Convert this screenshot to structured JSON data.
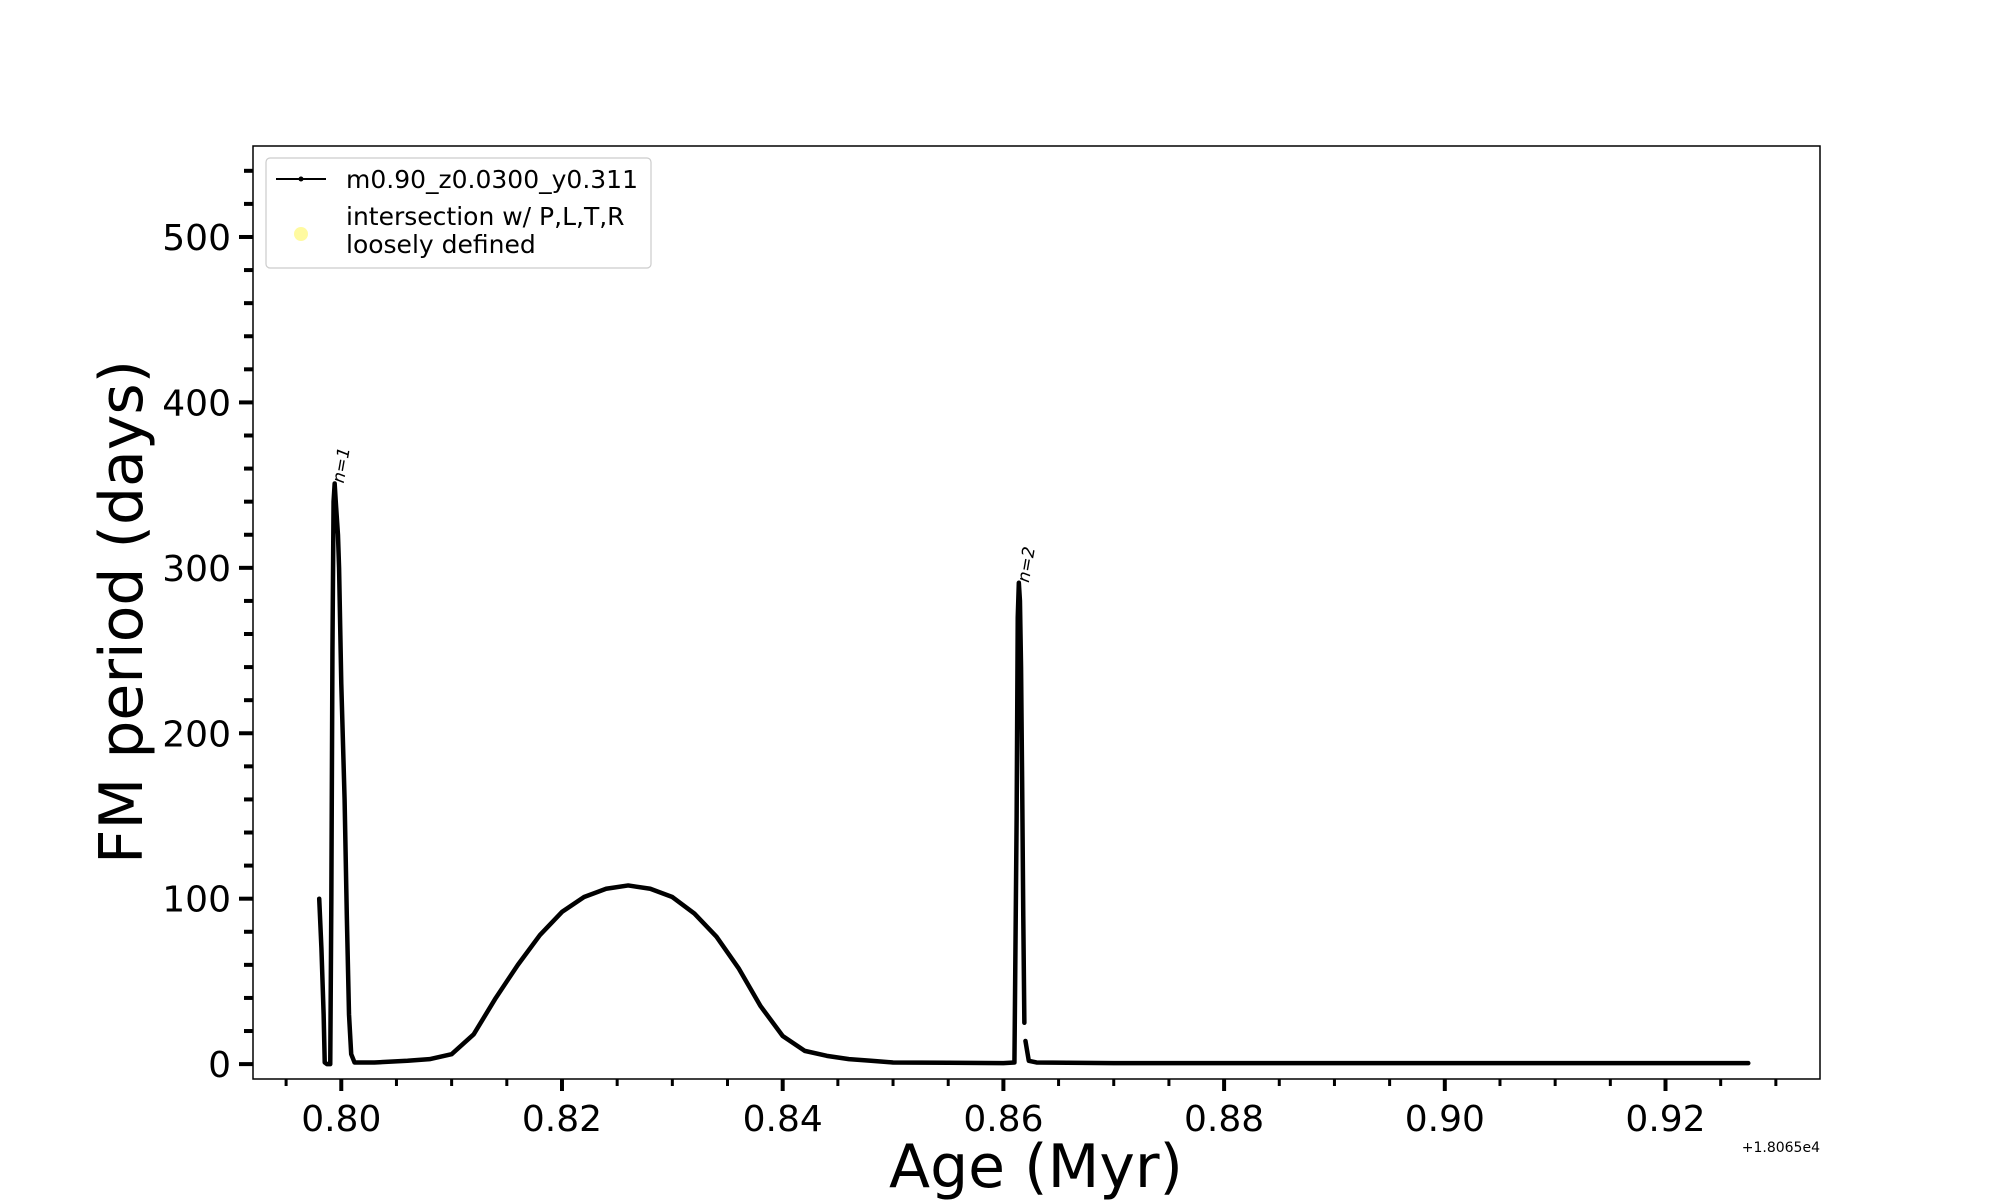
{
  "chart_data": {
    "type": "line",
    "xlabel": "Age (Myr)",
    "ylabel": "FM period (days)",
    "x_offset_label": "+1.8065e4",
    "xlim": [
      0.792,
      0.934
    ],
    "ylim": [
      -9,
      555
    ],
    "x_ticks": [
      0.8,
      0.82,
      0.84,
      0.86,
      0.88,
      0.9,
      0.92
    ],
    "x_tick_labels": [
      "0.80",
      "0.82",
      "0.84",
      "0.86",
      "0.88",
      "0.90",
      "0.92"
    ],
    "x_minor_step": 0.005,
    "y_ticks": [
      0,
      100,
      200,
      300,
      400,
      500
    ],
    "y_tick_labels": [
      "0",
      "100",
      "200",
      "300",
      "400",
      "500"
    ],
    "y_minor_step": 20,
    "grid": false,
    "legend_position": "upper-left",
    "legend": [
      {
        "label": "m0.90_z0.0300_y0.311",
        "marker": "line-with-dots",
        "color": "#000000"
      },
      {
        "label_lines": [
          "intersection w/ P,L,T,R",
          "loosely defined"
        ],
        "marker": "circle",
        "color": "#fffaa0"
      }
    ],
    "annotations": [
      {
        "text": "n=1",
        "x": 0.7993,
        "y": 352
      },
      {
        "text": "n=2",
        "x": 0.8614,
        "y": 292
      }
    ],
    "series": [
      {
        "name": "m0.90_z0.0300_y0.311",
        "color": "#000000",
        "segments": [
          [
            [
              0.798,
              100
            ],
            [
              0.7982,
              70
            ],
            [
              0.7984,
              30
            ],
            [
              0.7985,
              1
            ],
            [
              0.7987,
              0
            ],
            [
              0.7988,
              0
            ],
            [
              0.7989,
              0
            ],
            [
              0.799,
              0
            ],
            [
              0.7991,
              100
            ],
            [
              0.7992,
              250
            ],
            [
              0.7993,
              340
            ],
            [
              0.7994,
              351
            ],
            [
              0.7995,
              340
            ],
            [
              0.7997,
              320
            ],
            [
              0.7998,
              300
            ],
            [
              0.8,
              230
            ],
            [
              0.8003,
              160
            ],
            [
              0.8005,
              90
            ],
            [
              0.8007,
              30
            ],
            [
              0.8009,
              6
            ],
            [
              0.8012,
              1
            ],
            [
              0.803,
              1
            ],
            [
              0.806,
              2
            ],
            [
              0.808,
              3
            ],
            [
              0.81,
              6
            ],
            [
              0.812,
              18
            ],
            [
              0.814,
              40
            ],
            [
              0.816,
              60
            ],
            [
              0.818,
              78
            ],
            [
              0.82,
              92
            ],
            [
              0.822,
              101
            ],
            [
              0.824,
              106
            ],
            [
              0.826,
              108
            ],
            [
              0.828,
              106
            ],
            [
              0.83,
              101
            ],
            [
              0.832,
              91
            ],
            [
              0.834,
              77
            ],
            [
              0.836,
              58
            ],
            [
              0.838,
              35
            ],
            [
              0.84,
              17
            ],
            [
              0.842,
              8
            ],
            [
              0.844,
              5
            ],
            [
              0.846,
              3
            ],
            [
              0.848,
              2
            ],
            [
              0.85,
              1
            ],
            [
              0.855,
              0.8
            ],
            [
              0.86,
              0.6
            ],
            [
              0.861,
              1
            ],
            [
              0.8612,
              150
            ],
            [
              0.8613,
              270
            ],
            [
              0.8614,
              291
            ],
            [
              0.8615,
              280
            ],
            [
              0.8616,
              240
            ],
            [
              0.8617,
              170
            ],
            [
              0.8618,
              90
            ],
            [
              0.8619,
              25
            ]
          ],
          [
            [
              0.862,
              14
            ],
            [
              0.8621,
              10
            ],
            [
              0.8623,
              2
            ],
            [
              0.863,
              1
            ],
            [
              0.87,
              0.6
            ],
            [
              0.88,
              0.6
            ],
            [
              0.89,
              0.6
            ],
            [
              0.9,
              0.6
            ],
            [
              0.91,
              0.6
            ],
            [
              0.92,
              0.6
            ],
            [
              0.9275,
              0.6
            ]
          ]
        ]
      }
    ]
  }
}
